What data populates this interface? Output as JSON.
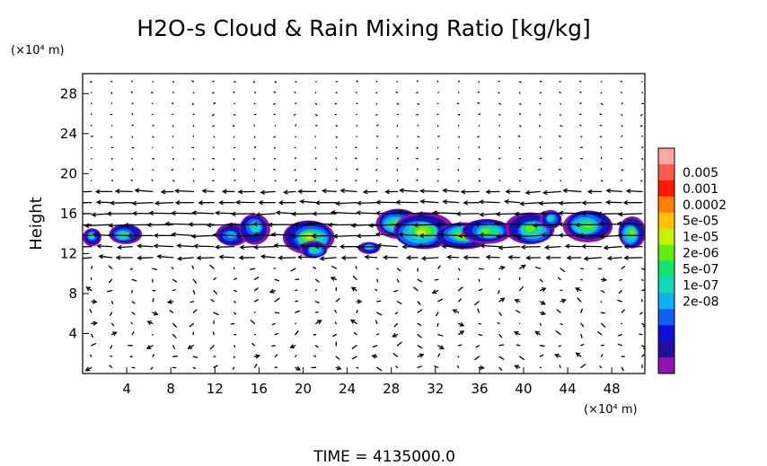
{
  "chart_data": {
    "type": "heatmap",
    "title": "H2O-s Cloud & Rain Mixing Ratio [kg/kg]",
    "ylabel": "Height",
    "y_unit": "(×10⁴ m)",
    "x_unit": "(×10⁴ m)",
    "footer": "TIME = 4135000.0",
    "xlim": [
      0,
      51
    ],
    "ylim": [
      0,
      30
    ],
    "x_ticks": [
      "4",
      "8",
      "12",
      "16",
      "20",
      "24",
      "28",
      "32",
      "36",
      "40",
      "44",
      "48"
    ],
    "x_tick_values": [
      4,
      8,
      12,
      16,
      20,
      24,
      28,
      32,
      36,
      40,
      44,
      48
    ],
    "y_ticks": [
      "4",
      "8",
      "12",
      "16",
      "20",
      "24",
      "28"
    ],
    "y_tick_values": [
      4,
      8,
      12,
      16,
      20,
      24,
      28
    ],
    "colorbar": {
      "labels": [
        "0.005",
        "0.001",
        "0.0002",
        "5e-05",
        "1e-05",
        "2e-06",
        "5e-07",
        "1e-07",
        "2e-08"
      ],
      "colors": [
        "#f7a9a1",
        "#f95d51",
        "#ff1a00",
        "#ff7f00",
        "#ffc000",
        "#c8f000",
        "#60ee10",
        "#18e070",
        "#10d8b8",
        "#10b0f0",
        "#1060f0",
        "#1010d8",
        "#2010a0",
        "#9010b0"
      ]
    },
    "clouds": [
      {
        "xmin": 0.0,
        "xmax": 1.7,
        "ymin": 12.8,
        "ymax": 14.6,
        "level": 6
      },
      {
        "xmin": 2.3,
        "xmax": 5.3,
        "ymin": 12.9,
        "ymax": 14.9,
        "level": 7
      },
      {
        "xmin": 12.0,
        "xmax": 15.0,
        "ymin": 12.7,
        "ymax": 15.0,
        "level": 5
      },
      {
        "xmin": 14.2,
        "xmax": 17.0,
        "ymin": 13.0,
        "ymax": 16.1,
        "level": 6
      },
      {
        "xmin": 18.3,
        "xmax": 23.0,
        "ymin": 11.9,
        "ymax": 15.3,
        "level": 9
      },
      {
        "xmin": 19.8,
        "xmax": 22.3,
        "ymin": 11.5,
        "ymax": 13.2,
        "level": 7
      },
      {
        "xmin": 25.0,
        "xmax": 27.0,
        "ymin": 12.0,
        "ymax": 13.2,
        "level": 6
      },
      {
        "xmin": 26.5,
        "xmax": 30.5,
        "ymin": 13.5,
        "ymax": 16.5,
        "level": 8
      },
      {
        "xmin": 28.0,
        "xmax": 33.5,
        "ymin": 12.3,
        "ymax": 16.0,
        "level": 9
      },
      {
        "xmin": 32.0,
        "xmax": 37.0,
        "ymin": 12.5,
        "ymax": 15.2,
        "level": 9
      },
      {
        "xmin": 34.5,
        "xmax": 39.0,
        "ymin": 13.0,
        "ymax": 15.5,
        "level": 8
      },
      {
        "xmin": 38.5,
        "xmax": 43.0,
        "ymin": 12.8,
        "ymax": 16.0,
        "level": 8
      },
      {
        "xmin": 41.5,
        "xmax": 43.5,
        "ymin": 14.5,
        "ymax": 16.4,
        "level": 6
      },
      {
        "xmin": 43.5,
        "xmax": 48.0,
        "ymin": 13.2,
        "ymax": 16.4,
        "level": 8
      },
      {
        "xmin": 48.5,
        "xmax": 51.0,
        "ymin": 12.4,
        "ymax": 15.6,
        "level": 8
      }
    ],
    "wind_jet": {
      "ymin": 11.2,
      "ymax": 18.8,
      "direction": "westward"
    }
  }
}
